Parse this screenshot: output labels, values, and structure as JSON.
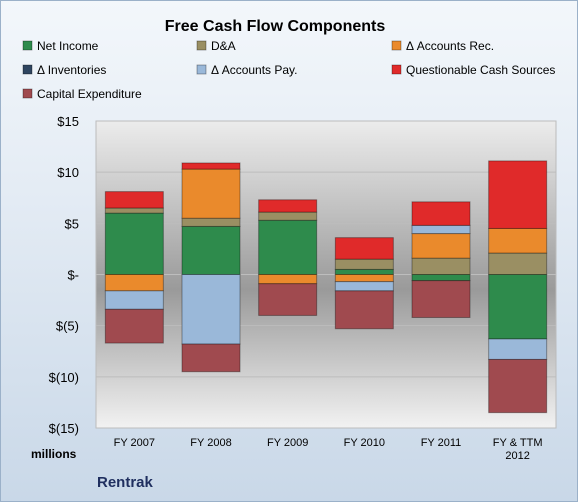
{
  "chart_data": {
    "type": "bar",
    "stacked": true,
    "title": "Free Cash Flow Components",
    "units_label": "millions",
    "company": "Rentrak",
    "categories": [
      "FY 2007",
      "FY 2008",
      "FY 2009",
      "FY 2010",
      "FY 2011",
      "FY & TTM 2012"
    ],
    "ylim": [
      -15,
      15
    ],
    "y_ticks": [
      15,
      10,
      5,
      0,
      -5,
      -10,
      -15
    ],
    "y_tick_labels": [
      "$15",
      "$10",
      "$5",
      "$-",
      "$(5)",
      "$(10)",
      "$(15)"
    ],
    "legend_position": "top",
    "grid": true,
    "series": [
      {
        "name": "Net Income",
        "color": "#2e8b4c",
        "values": [
          6.0,
          4.7,
          5.3,
          0.5,
          -0.6,
          -6.3
        ]
      },
      {
        "name": "D&A",
        "color": "#9a8f63",
        "values": [
          0.5,
          0.8,
          0.8,
          1.0,
          1.6,
          2.1
        ]
      },
      {
        "name": "Δ Accounts Rec.",
        "color": "#ea8a2c",
        "values": [
          -1.6,
          4.8,
          -0.9,
          -0.7,
          2.4,
          2.4
        ]
      },
      {
        "name": "Δ Inventories",
        "color": "#2f4560",
        "values": [
          0,
          0,
          0,
          0,
          0,
          0
        ]
      },
      {
        "name": "Δ Accounts Pay.",
        "color": "#9ab8d9",
        "values": [
          -1.8,
          -6.8,
          0,
          -0.9,
          0.8,
          -2.0
        ]
      },
      {
        "name": "Questionable Cash Sources",
        "color": "#e02a2a",
        "values": [
          1.6,
          0.6,
          1.2,
          2.1,
          2.3,
          6.6
        ]
      },
      {
        "name": "Capital Expenditure",
        "color": "#a04a4f",
        "values": [
          -3.3,
          -2.7,
          -3.1,
          -3.7,
          -3.6,
          -5.2
        ]
      }
    ]
  }
}
